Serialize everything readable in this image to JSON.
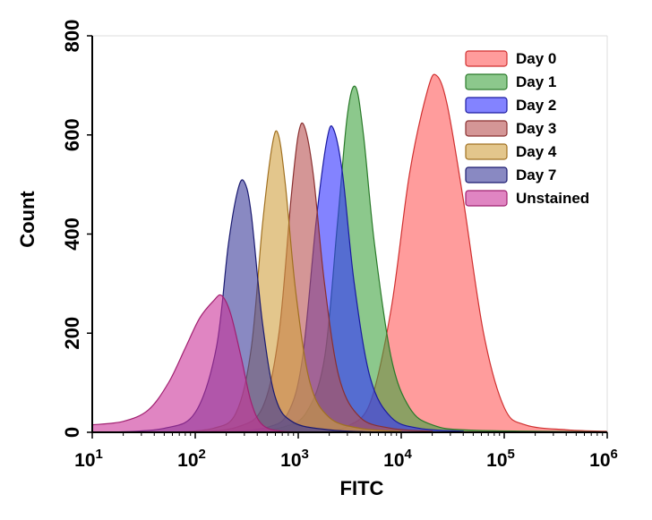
{
  "chart_data": {
    "type": "area",
    "title": "",
    "xlabel": "FITC",
    "ylabel": "Count",
    "xscale": "log",
    "xlim": [
      10,
      1000000
    ],
    "ylim": [
      0,
      800
    ],
    "x_ticks": [
      {
        "base": "10",
        "exp": "1"
      },
      {
        "base": "10",
        "exp": "2"
      },
      {
        "base": "10",
        "exp": "3"
      },
      {
        "base": "10",
        "exp": "4"
      },
      {
        "base": "10",
        "exp": "5"
      },
      {
        "base": "10",
        "exp": "6"
      }
    ],
    "y_ticks": [
      "0",
      "200",
      "400",
      "600",
      "800"
    ],
    "grid": false,
    "legend_position": "top-right",
    "series": [
      {
        "name": "Day 0",
        "color": "#ff5a5a",
        "stroke": "#d03030",
        "points": [
          [
            2000,
            5
          ],
          [
            3000,
            12
          ],
          [
            5000,
            60
          ],
          [
            8000,
            250
          ],
          [
            12000,
            520
          ],
          [
            18000,
            690
          ],
          [
            22000,
            720
          ],
          [
            28000,
            660
          ],
          [
            40000,
            470
          ],
          [
            63000,
            200
          ],
          [
            100000,
            50
          ],
          [
            160000,
            15
          ],
          [
            400000,
            5
          ],
          [
            1000000,
            2
          ]
        ]
      },
      {
        "name": "Day 1",
        "color": "#3fa33f",
        "stroke": "#2a7a2a",
        "points": [
          [
            300,
            0
          ],
          [
            700,
            10
          ],
          [
            1200,
            40
          ],
          [
            1800,
            150
          ],
          [
            2400,
            420
          ],
          [
            3000,
            640
          ],
          [
            3600,
            697
          ],
          [
            4300,
            600
          ],
          [
            5500,
            380
          ],
          [
            8000,
            150
          ],
          [
            12000,
            50
          ],
          [
            20000,
            15
          ],
          [
            50000,
            4
          ],
          [
            1000000,
            1
          ]
        ]
      },
      {
        "name": "Day 2",
        "color": "#3030ff",
        "stroke": "#1a1aa0",
        "points": [
          [
            200,
            0
          ],
          [
            500,
            10
          ],
          [
            800,
            40
          ],
          [
            1100,
            150
          ],
          [
            1500,
            430
          ],
          [
            1900,
            590
          ],
          [
            2200,
            612
          ],
          [
            2700,
            520
          ],
          [
            3500,
            300
          ],
          [
            5000,
            110
          ],
          [
            8000,
            30
          ],
          [
            15000,
            8
          ],
          [
            40000,
            2
          ]
        ]
      },
      {
        "name": "Day 3",
        "color": "#b85050",
        "stroke": "#8a3030",
        "points": [
          [
            100,
            0
          ],
          [
            250,
            10
          ],
          [
            450,
            50
          ],
          [
            650,
            200
          ],
          [
            850,
            470
          ],
          [
            1000,
            600
          ],
          [
            1150,
            617
          ],
          [
            1400,
            520
          ],
          [
            1800,
            300
          ],
          [
            2500,
            110
          ],
          [
            4000,
            30
          ],
          [
            8000,
            8
          ],
          [
            20000,
            2
          ]
        ]
      },
      {
        "name": "Day 4",
        "color": "#d0a040",
        "stroke": "#a07020",
        "points": [
          [
            60,
            0
          ],
          [
            150,
            8
          ],
          [
            250,
            40
          ],
          [
            350,
            170
          ],
          [
            450,
            420
          ],
          [
            560,
            580
          ],
          [
            640,
            601
          ],
          [
            750,
            500
          ],
          [
            950,
            280
          ],
          [
            1300,
            100
          ],
          [
            2000,
            30
          ],
          [
            4000,
            8
          ],
          [
            10000,
            2
          ]
        ]
      },
      {
        "name": "Day 7",
        "color": "#3a3a9a",
        "stroke": "#1a1a70",
        "points": [
          [
            15,
            0
          ],
          [
            50,
            8
          ],
          [
            100,
            40
          ],
          [
            160,
            170
          ],
          [
            210,
            380
          ],
          [
            260,
            490
          ],
          [
            300,
            505
          ],
          [
            350,
            440
          ],
          [
            450,
            220
          ],
          [
            600,
            70
          ],
          [
            900,
            20
          ],
          [
            2000,
            5
          ],
          [
            5000,
            1
          ]
        ]
      },
      {
        "name": "Unstained",
        "color": "#cc3399",
        "stroke": "#a02070",
        "points": [
          [
            10,
            15
          ],
          [
            20,
            22
          ],
          [
            35,
            45
          ],
          [
            55,
            100
          ],
          [
            80,
            170
          ],
          [
            110,
            230
          ],
          [
            150,
            265
          ],
          [
            180,
            276
          ],
          [
            220,
            240
          ],
          [
            280,
            150
          ],
          [
            350,
            60
          ],
          [
            450,
            15
          ],
          [
            700,
            2
          ],
          [
            1500,
            0
          ]
        ]
      }
    ]
  }
}
